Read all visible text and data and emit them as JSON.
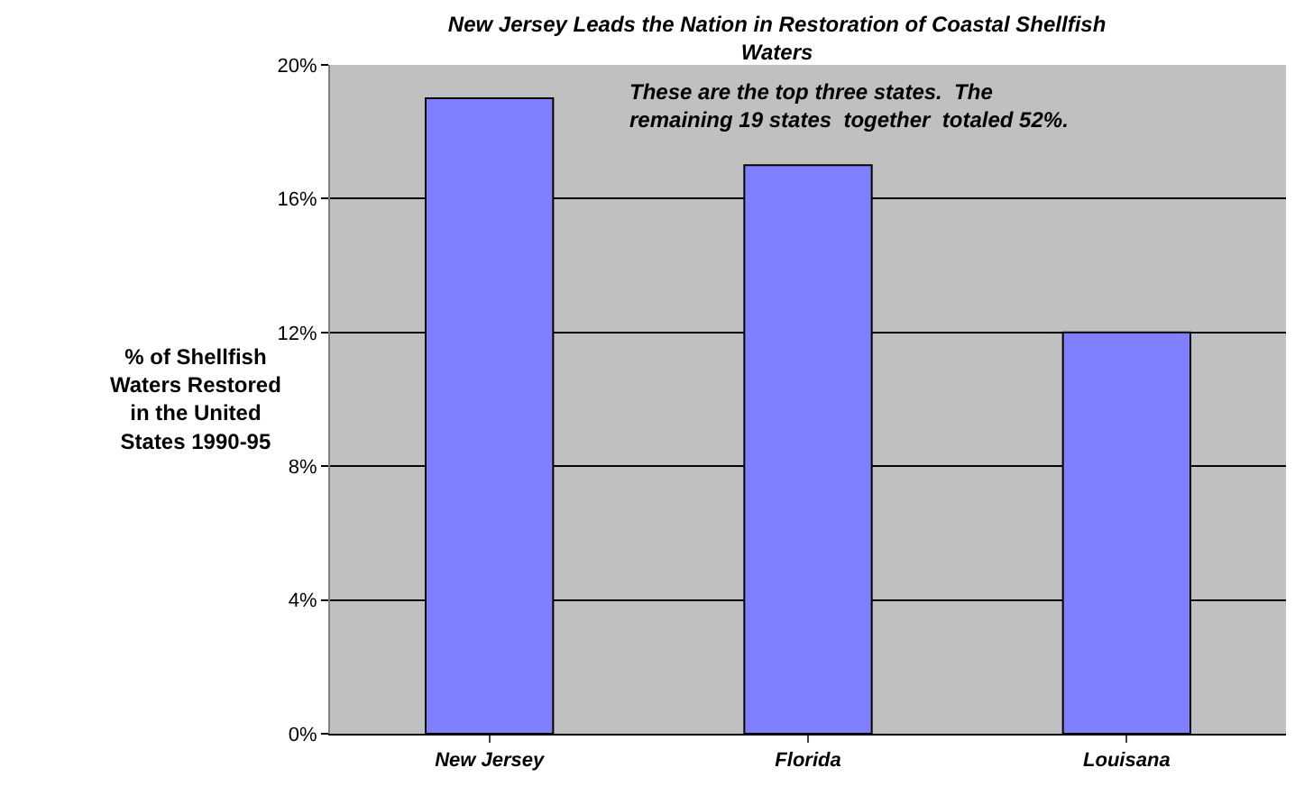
{
  "chart_data": {
    "type": "bar",
    "title": "New Jersey Leads the Nation in Restoration of Coastal Shellfish Waters",
    "ylabel": "% of Shellfish Waters Restored in the United States 1990-95",
    "categories": [
      "New Jersey",
      "Florida",
      "Louisana"
    ],
    "values": [
      19,
      17,
      12
    ],
    "color": "#8080ff",
    "ylim": [
      0,
      20
    ],
    "yticks": [
      {
        "value": 0,
        "label": "0%"
      },
      {
        "value": 4,
        "label": "4%"
      },
      {
        "value": 8,
        "label": "8%"
      },
      {
        "value": 12,
        "label": "12%"
      },
      {
        "value": 16,
        "label": "16%"
      },
      {
        "value": 20,
        "label": "20%"
      }
    ],
    "grid": "y",
    "legend": false,
    "annotations": [
      "These are the top three states.  The remaining 19 states  together  totaled 52%."
    ]
  }
}
